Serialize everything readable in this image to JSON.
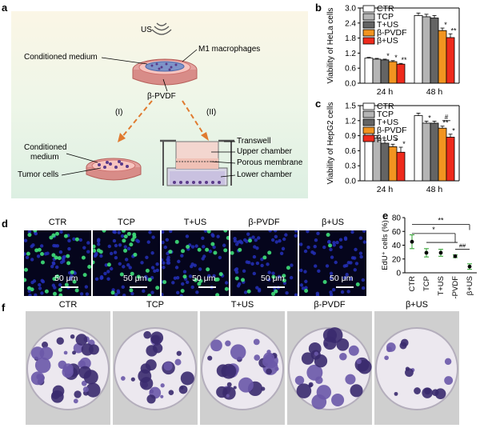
{
  "panel_labels": {
    "a": "a",
    "b": "b",
    "c": "c",
    "d": "d",
    "e": "e",
    "f": "f"
  },
  "schematic": {
    "us": "US",
    "conditioned_medium": "Conditioned medium",
    "m1": "M1 macrophages",
    "pvdf": "β-PVDF",
    "route1": "(I)",
    "route2": "(II)",
    "cond_medium_2a": "Conditioned",
    "cond_medium_2b": "medium",
    "tumor_cells": "Tumor cells",
    "transwell": "Transwell",
    "upper_chamber": "Upper chamber",
    "porous_membrane": "Porous membrane",
    "lower_chamber": "Lower chamber"
  },
  "legend": [
    {
      "name": "CTR",
      "color": "#ffffff"
    },
    {
      "name": "TCP",
      "color": "#b5b5b5"
    },
    {
      "name": "T+US",
      "color": "#646464"
    },
    {
      "name": "β-PVDF",
      "color": "#f29420"
    },
    {
      "name": "β+US",
      "color": "#ee2a1c"
    }
  ],
  "chart_data": [
    {
      "type": "bar",
      "title": "",
      "ylabel": "Viability of HeLa cells",
      "ylim": [
        0,
        3.0
      ],
      "yticks": [
        "0.0",
        "0.6",
        "1.2",
        "1.8",
        "2.4",
        "3.0"
      ],
      "categories": [
        "24 h",
        "48 h"
      ],
      "series": [
        {
          "name": "CTR",
          "values": [
            1.0,
            2.7
          ],
          "errors": [
            0.03,
            0.1
          ]
        },
        {
          "name": "TCP",
          "values": [
            0.96,
            2.65
          ],
          "errors": [
            0.03,
            0.1
          ]
        },
        {
          "name": "T+US",
          "values": [
            0.93,
            2.6
          ],
          "errors": [
            0.03,
            0.1
          ]
        },
        {
          "name": "β-PVDF",
          "values": [
            0.86,
            2.1
          ],
          "errors": [
            0.04,
            0.1
          ]
        },
        {
          "name": "β+US",
          "values": [
            0.76,
            1.82
          ],
          "errors": [
            0.03,
            0.15
          ]
        }
      ],
      "annotations": [
        {
          "category": "24 h",
          "series": "T+US",
          "text": "*"
        },
        {
          "category": "24 h",
          "series": "β-PVDF",
          "text": "*"
        },
        {
          "category": "24 h",
          "series": "β+US",
          "text": "**"
        },
        {
          "category": "48 h",
          "series": "β-PVDF",
          "text": "*"
        },
        {
          "category": "48 h",
          "series": "β+US",
          "text": "**"
        }
      ]
    },
    {
      "type": "bar",
      "title": "",
      "ylabel": "Viability of HepG2 cells",
      "ylim": [
        0,
        1.5
      ],
      "yticks": [
        "0.0",
        "0.3",
        "0.6",
        "0.9",
        "1.2",
        "1.5"
      ],
      "categories": [
        "24 h",
        "48 h"
      ],
      "series": [
        {
          "name": "CTR",
          "values": [
            1.0,
            1.3
          ],
          "errors": [
            0.06,
            0.05
          ]
        },
        {
          "name": "TCP",
          "values": [
            0.85,
            1.15
          ],
          "errors": [
            0.05,
            0.04
          ]
        },
        {
          "name": "T+US",
          "values": [
            0.75,
            1.15
          ],
          "errors": [
            0.06,
            0.04
          ]
        },
        {
          "name": "β-PVDF",
          "values": [
            0.68,
            1.05
          ],
          "errors": [
            0.05,
            0.04
          ]
        },
        {
          "name": "β+US",
          "values": [
            0.57,
            0.87
          ],
          "errors": [
            0.1,
            0.06
          ]
        }
      ],
      "annotations": [
        {
          "category": "24 h",
          "series": "β-PVDF",
          "text": "*"
        },
        {
          "category": "24 h",
          "series": "β+US",
          "text": "*"
        },
        {
          "category": "48 h",
          "series": "TCP",
          "text": "*"
        },
        {
          "category": "48 h",
          "series": "β-PVDF",
          "text": "**"
        },
        {
          "category": "48 h",
          "series": "β+US",
          "text": "*"
        },
        {
          "category": "48 h",
          "series": "β-PVDF vs β+US",
          "text": "#"
        }
      ]
    },
    {
      "type": "scatter",
      "title": "",
      "ylabel": "EdU⁺ cells (%)",
      "ylim": [
        0,
        80
      ],
      "yticks": [
        "0",
        "20",
        "40",
        "60",
        "80"
      ],
      "categories": [
        "CTR",
        "TCP",
        "T+US",
        "β-PVDF",
        "β+US"
      ],
      "values": [
        45,
        29,
        29,
        24,
        9
      ],
      "errors": [
        10,
        6,
        5,
        2,
        4
      ],
      "annotations": [
        {
          "text": "**"
        },
        {
          "text": "*"
        },
        {
          "text": "##"
        }
      ]
    }
  ],
  "fluorescence": {
    "titles": [
      "CTR",
      "TCP",
      "T+US",
      "β-PVDF",
      "β+US"
    ],
    "scale_bar": "50 μm"
  },
  "colonies": {
    "titles": [
      "CTR",
      "TCP",
      "T+US",
      "β-PVDF",
      "β+US"
    ]
  }
}
